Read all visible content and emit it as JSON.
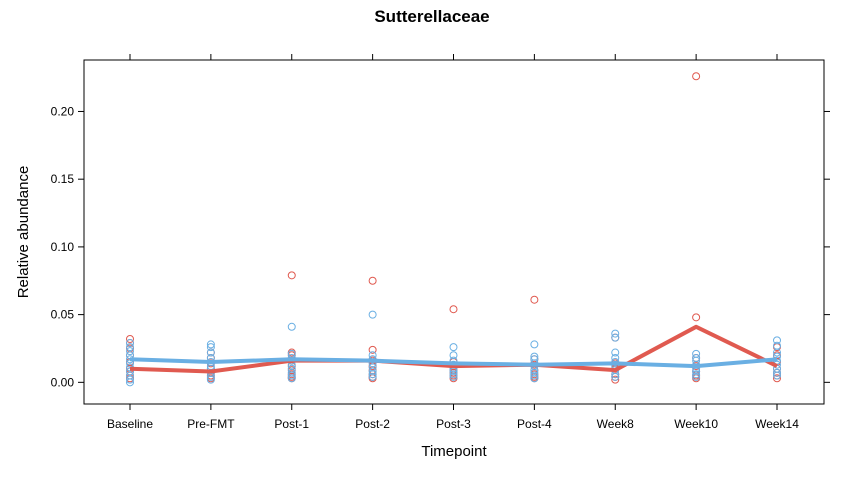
{
  "chart_data": {
    "type": "scatter",
    "title": "Sutterellaceae",
    "xlabel": "Timepoint",
    "ylabel": "Relative abundance",
    "categories": [
      "Baseline",
      "Pre-FMT",
      "Post-1",
      "Post-2",
      "Post-3",
      "Post-4",
      "Week8",
      "Week10",
      "Week14"
    ],
    "yticks": [
      "0.00",
      "0.05",
      "0.10",
      "0.15",
      "0.20"
    ],
    "ylim": [
      -0.016,
      0.238
    ],
    "grid": false,
    "legend": "none",
    "series": [
      {
        "color": "#e05a50",
        "mean_line": [
          0.01,
          0.008,
          0.016,
          0.016,
          0.012,
          0.013,
          0.009,
          0.041,
          0.012
        ],
        "points": [
          [
            0.032,
            0.029,
            0.025,
            0.02,
            0.015,
            0.01,
            0.008,
            0.005,
            0.003
          ],
          [
            0.022,
            0.018,
            0.014,
            0.01,
            0.007,
            0.005,
            0.003
          ],
          [
            0.079,
            0.022,
            0.02,
            0.016,
            0.012,
            0.009,
            0.006,
            0.004,
            0.003
          ],
          [
            0.075,
            0.024,
            0.016,
            0.012,
            0.009,
            0.006,
            0.004,
            0.003
          ],
          [
            0.054,
            0.015,
            0.012,
            0.009,
            0.007,
            0.005,
            0.003
          ],
          [
            0.061,
            0.017,
            0.013,
            0.009,
            0.006,
            0.004,
            0.003
          ],
          [
            0.033,
            0.014,
            0.01,
            0.006,
            0.004,
            0.002
          ],
          [
            0.226,
            0.048,
            0.018,
            0.012,
            0.008,
            0.005,
            0.003
          ],
          [
            0.026,
            0.02,
            0.015,
            0.01,
            0.007,
            0.005,
            0.003
          ]
        ]
      },
      {
        "color": "#6aafe3",
        "mean_line": [
          0.017,
          0.015,
          0.017,
          0.016,
          0.014,
          0.013,
          0.014,
          0.012,
          0.017
        ],
        "points": [
          [
            0.029,
            0.026,
            0.023,
            0.02,
            0.017,
            0.014,
            0.011,
            0.008,
            0.005,
            0.002,
            0.0
          ],
          [
            0.028,
            0.026,
            0.022,
            0.018,
            0.015,
            0.012,
            0.01,
            0.007,
            0.004,
            0.002
          ],
          [
            0.041,
            0.021,
            0.018,
            0.016,
            0.013,
            0.01,
            0.007,
            0.005,
            0.003
          ],
          [
            0.05,
            0.02,
            0.017,
            0.014,
            0.011,
            0.008,
            0.006,
            0.004
          ],
          [
            0.026,
            0.02,
            0.016,
            0.013,
            0.01,
            0.008,
            0.006,
            0.004
          ],
          [
            0.028,
            0.019,
            0.017,
            0.014,
            0.012,
            0.009,
            0.007,
            0.005,
            0.003
          ],
          [
            0.036,
            0.033,
            0.022,
            0.018,
            0.015,
            0.012,
            0.009,
            0.006,
            0.004
          ],
          [
            0.021,
            0.018,
            0.016,
            0.013,
            0.01,
            0.008,
            0.006,
            0.004
          ],
          [
            0.031,
            0.027,
            0.022,
            0.019,
            0.016,
            0.013,
            0.01,
            0.007,
            0.005
          ]
        ]
      }
    ]
  }
}
